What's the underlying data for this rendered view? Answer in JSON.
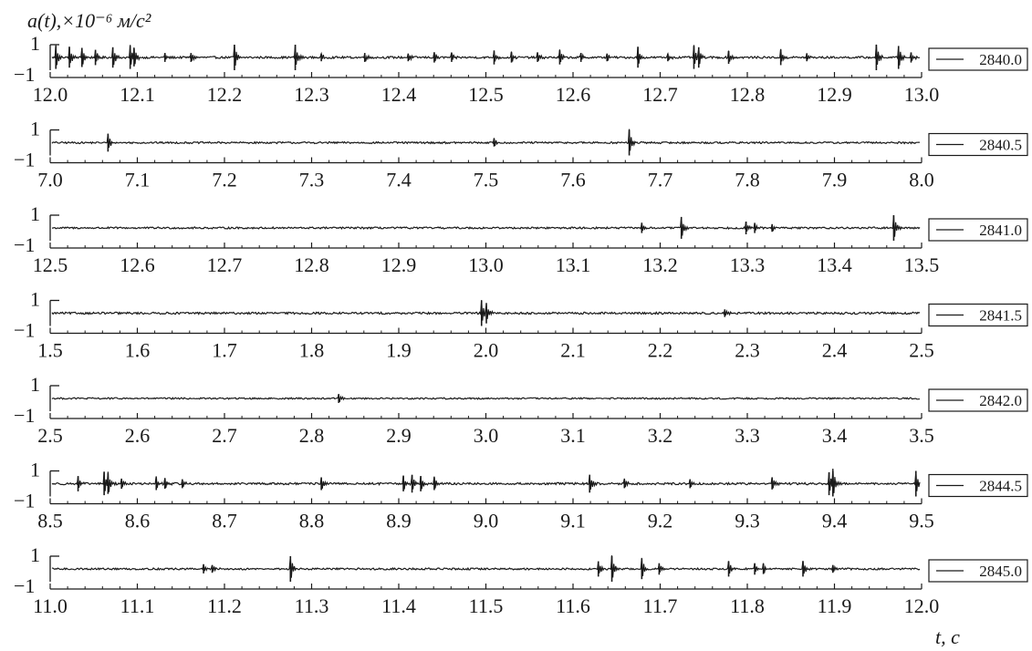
{
  "chart_data": {
    "type": "line",
    "ylabel": "a(t),×10⁻⁶ м/с²",
    "xlabel": "t, с",
    "ylim": [
      -1,
      1
    ],
    "y_ticks": [
      "1",
      "−1"
    ],
    "colors": {
      "trace": "#1a1a1a",
      "axis": "#1a1a1a"
    },
    "panels": [
      {
        "legend": "2840.0",
        "xlim": [
          12.0,
          13.0
        ],
        "x_ticks": [
          "12.0",
          "12.1",
          "12.2",
          "12.3",
          "12.4",
          "12.5",
          "12.6",
          "12.7",
          "12.8",
          "12.9",
          "13.0"
        ],
        "noise": 0.08,
        "spikes": [
          [
            12.005,
            0.9
          ],
          [
            12.02,
            0.8
          ],
          [
            12.035,
            0.75
          ],
          [
            12.05,
            0.6
          ],
          [
            12.07,
            0.8
          ],
          [
            12.09,
            0.9
          ],
          [
            12.095,
            0.7
          ],
          [
            12.13,
            0.35
          ],
          [
            12.16,
            0.35
          ],
          [
            12.21,
            1.0
          ],
          [
            12.28,
            1.0
          ],
          [
            12.31,
            0.3
          ],
          [
            12.36,
            0.35
          ],
          [
            12.41,
            0.3
          ],
          [
            12.44,
            0.4
          ],
          [
            12.46,
            0.35
          ],
          [
            12.51,
            0.55
          ],
          [
            12.53,
            0.4
          ],
          [
            12.56,
            0.35
          ],
          [
            12.585,
            0.55
          ],
          [
            12.61,
            0.35
          ],
          [
            12.64,
            0.3
          ],
          [
            12.675,
            0.8
          ],
          [
            12.71,
            0.3
          ],
          [
            12.74,
            0.9
          ],
          [
            12.745,
            0.8
          ],
          [
            12.78,
            0.5
          ],
          [
            12.84,
            0.6
          ],
          [
            12.87,
            0.3
          ],
          [
            12.95,
            1.0
          ],
          [
            12.975,
            0.9
          ],
          [
            12.99,
            0.4
          ]
        ]
      },
      {
        "legend": "2840.5",
        "xlim": [
          7.0,
          8.0
        ],
        "x_ticks": [
          "7.0",
          "7.1",
          "7.2",
          "7.3",
          "7.4",
          "7.5",
          "7.6",
          "7.7",
          "7.8",
          "7.9",
          "8.0"
        ],
        "noise": 0.07,
        "spikes": [
          [
            7.065,
            0.7
          ],
          [
            7.51,
            0.3
          ],
          [
            7.665,
            1.0
          ]
        ]
      },
      {
        "legend": "2841.0",
        "xlim": [
          12.5,
          13.5
        ],
        "x_ticks": [
          "12.5",
          "12.6",
          "12.7",
          "12.8",
          "12.9",
          "13.0",
          "13.1",
          "13.2",
          "13.3",
          "13.4",
          "13.5"
        ],
        "noise": 0.07,
        "spikes": [
          [
            13.18,
            0.4
          ],
          [
            13.225,
            0.85
          ],
          [
            13.3,
            0.5
          ],
          [
            13.31,
            0.4
          ],
          [
            13.33,
            0.3
          ],
          [
            13.47,
            1.0
          ]
        ]
      },
      {
        "legend": "2841.5",
        "xlim": [
          1.5,
          2.5
        ],
        "x_ticks": [
          "1.5",
          "1.6",
          "1.7",
          "1.8",
          "1.9",
          "2.0",
          "2.1",
          "2.2",
          "2.3",
          "2.4",
          "2.5"
        ],
        "noise": 0.08,
        "spikes": [
          [
            1.995,
            1.0
          ],
          [
            2.0,
            0.8
          ],
          [
            2.275,
            0.3
          ]
        ]
      },
      {
        "legend": "2842.0",
        "xlim": [
          2.5,
          3.5
        ],
        "x_ticks": [
          "2.5",
          "2.6",
          "2.7",
          "2.8",
          "2.9",
          "3.0",
          "3.1",
          "3.2",
          "3.3",
          "3.4",
          "3.5"
        ],
        "noise": 0.06,
        "spikes": [
          [
            2.83,
            0.35
          ]
        ]
      },
      {
        "legend": "2844.5",
        "xlim": [
          8.5,
          9.5
        ],
        "x_ticks": [
          "8.5",
          "8.6",
          "8.7",
          "8.8",
          "8.9",
          "9.0",
          "9.1",
          "9.2",
          "9.3",
          "9.4",
          "9.5"
        ],
        "noise": 0.08,
        "spikes": [
          [
            8.53,
            0.6
          ],
          [
            8.56,
            0.9
          ],
          [
            8.565,
            0.8
          ],
          [
            8.58,
            0.4
          ],
          [
            8.62,
            0.5
          ],
          [
            8.63,
            0.4
          ],
          [
            8.65,
            0.35
          ],
          [
            8.81,
            0.5
          ],
          [
            8.905,
            0.6
          ],
          [
            8.915,
            0.7
          ],
          [
            8.925,
            0.6
          ],
          [
            8.94,
            0.5
          ],
          [
            9.12,
            0.7
          ],
          [
            9.16,
            0.35
          ],
          [
            9.235,
            0.35
          ],
          [
            9.33,
            0.45
          ],
          [
            9.395,
            0.9
          ],
          [
            9.4,
            1.0
          ],
          [
            9.495,
            1.0
          ]
        ]
      },
      {
        "legend": "2845.0",
        "xlim": [
          11.0,
          12.0
        ],
        "x_ticks": [
          "11.0",
          "11.1",
          "11.2",
          "11.3",
          "11.4",
          "11.5",
          "11.6",
          "11.7",
          "11.8",
          "11.9",
          "12.0"
        ],
        "noise": 0.07,
        "spikes": [
          [
            11.175,
            0.35
          ],
          [
            11.185,
            0.3
          ],
          [
            11.275,
            1.0
          ],
          [
            11.63,
            0.6
          ],
          [
            11.645,
            1.0
          ],
          [
            11.68,
            0.8
          ],
          [
            11.7,
            0.45
          ],
          [
            11.78,
            0.6
          ],
          [
            11.81,
            0.45
          ],
          [
            11.82,
            0.4
          ],
          [
            11.865,
            0.6
          ],
          [
            11.9,
            0.3
          ]
        ]
      }
    ]
  }
}
